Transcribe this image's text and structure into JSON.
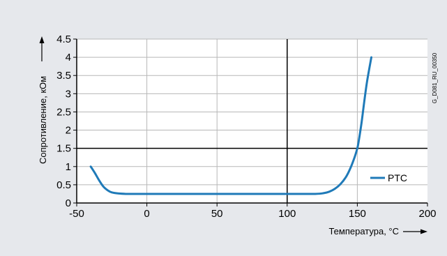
{
  "chart_data": {
    "type": "line",
    "title": "",
    "xlabel": "Температура, °C",
    "ylabel": "Сопротивление, кОм",
    "xlim": [
      -50,
      200
    ],
    "ylim": [
      0,
      4.5
    ],
    "xticks": [
      -50,
      0,
      50,
      100,
      150,
      200
    ],
    "yticks": [
      0,
      0.5,
      1,
      1.5,
      2,
      2.5,
      3,
      3.5,
      4,
      4.5
    ],
    "xtick_labels": [
      "-50",
      "0",
      "50",
      "100",
      "150",
      "200"
    ],
    "ytick_labels": [
      "0",
      "0.5",
      "1",
      "1.5",
      "2",
      "2.5",
      "3",
      "3.5",
      "4",
      "4.5"
    ],
    "grid": true,
    "reference_lines": {
      "x": 100,
      "y": 1.5
    },
    "legend_position": "lower-right",
    "series": [
      {
        "name": "PTC",
        "color": "#1f7ab8",
        "x": [
          -40,
          -37,
          -34,
          -31,
          -28,
          -25,
          -20,
          -15,
          -10,
          0,
          50,
          100,
          120,
          126,
          130,
          134,
          138,
          142,
          145,
          148,
          150,
          151,
          153,
          155,
          157,
          160
        ],
        "y": [
          1.0,
          0.82,
          0.62,
          0.45,
          0.35,
          0.29,
          0.26,
          0.25,
          0.25,
          0.25,
          0.25,
          0.25,
          0.25,
          0.27,
          0.31,
          0.39,
          0.52,
          0.72,
          0.95,
          1.25,
          1.5,
          1.7,
          2.2,
          2.8,
          3.35,
          4.0
        ]
      }
    ],
    "side_label": "G_D081_RU_00350"
  }
}
